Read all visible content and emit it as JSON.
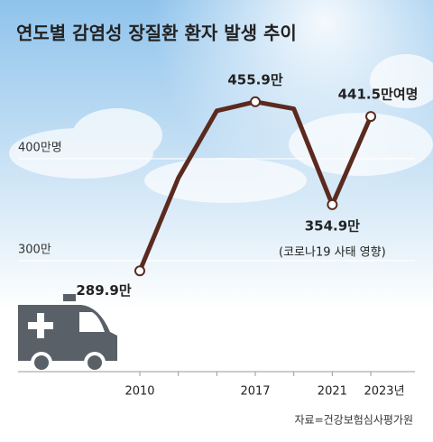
{
  "chart_data": {
    "type": "line",
    "title": "연도별 감염성 장질환 환자 발생 추이",
    "categories": [
      "2010",
      null,
      null,
      "2017",
      null,
      "2021",
      "2023년"
    ],
    "series": [
      {
        "name": "감염성 장질환 환자",
        "color": "#5b2a1f",
        "values": [
          289.9,
          381,
          447,
          455.9,
          449,
          354.9,
          441.5
        ],
        "value_labels": [
          "289.9만",
          null,
          null,
          "455.9만",
          null,
          "354.9만",
          "441.5만여명"
        ]
      }
    ],
    "ylim": [
      191,
      500
    ],
    "yticks": [
      {
        "value": 300,
        "label": "300만"
      },
      {
        "value": 400,
        "label": "400만명"
      }
    ],
    "grid": true,
    "annotation": "(코로나19 사태 영향)",
    "source": "자료=건강보험심사평가원"
  }
}
